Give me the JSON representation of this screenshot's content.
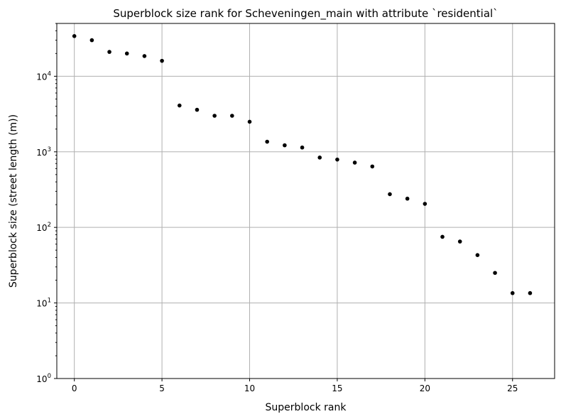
{
  "chart_data": {
    "type": "scatter",
    "title": "Superblock size rank for Scheveningen_main with attribute `residential`",
    "xlabel": "Superblock rank",
    "ylabel": "Superblock size (street length (m))",
    "xlim": [
      -1,
      27.4
    ],
    "ylim": [
      1,
      50000
    ],
    "yscale": "log",
    "grid": true,
    "marker_color": "#000000",
    "x_ticks": [
      0,
      5,
      10,
      15,
      20,
      25
    ],
    "y_ticks": [
      {
        "value": 1,
        "base": "10",
        "exp": "0"
      },
      {
        "value": 10,
        "base": "10",
        "exp": "1"
      },
      {
        "value": 100,
        "base": "10",
        "exp": "2"
      },
      {
        "value": 1000,
        "base": "10",
        "exp": "3"
      },
      {
        "value": 10000,
        "base": "10",
        "exp": "4"
      }
    ],
    "x": [
      0,
      1,
      2,
      3,
      4,
      5,
      6,
      7,
      8,
      9,
      10,
      11,
      12,
      13,
      14,
      15,
      16,
      17,
      18,
      19,
      20,
      21,
      22,
      23,
      24,
      25,
      26
    ],
    "y": [
      34000,
      30000,
      21000,
      20000,
      18500,
      16000,
      4100,
      3600,
      3000,
      3000,
      2500,
      1360,
      1220,
      1140,
      840,
      790,
      720,
      640,
      275,
      240,
      205,
      75,
      65,
      43,
      25,
      13.5,
      13.5
    ]
  }
}
